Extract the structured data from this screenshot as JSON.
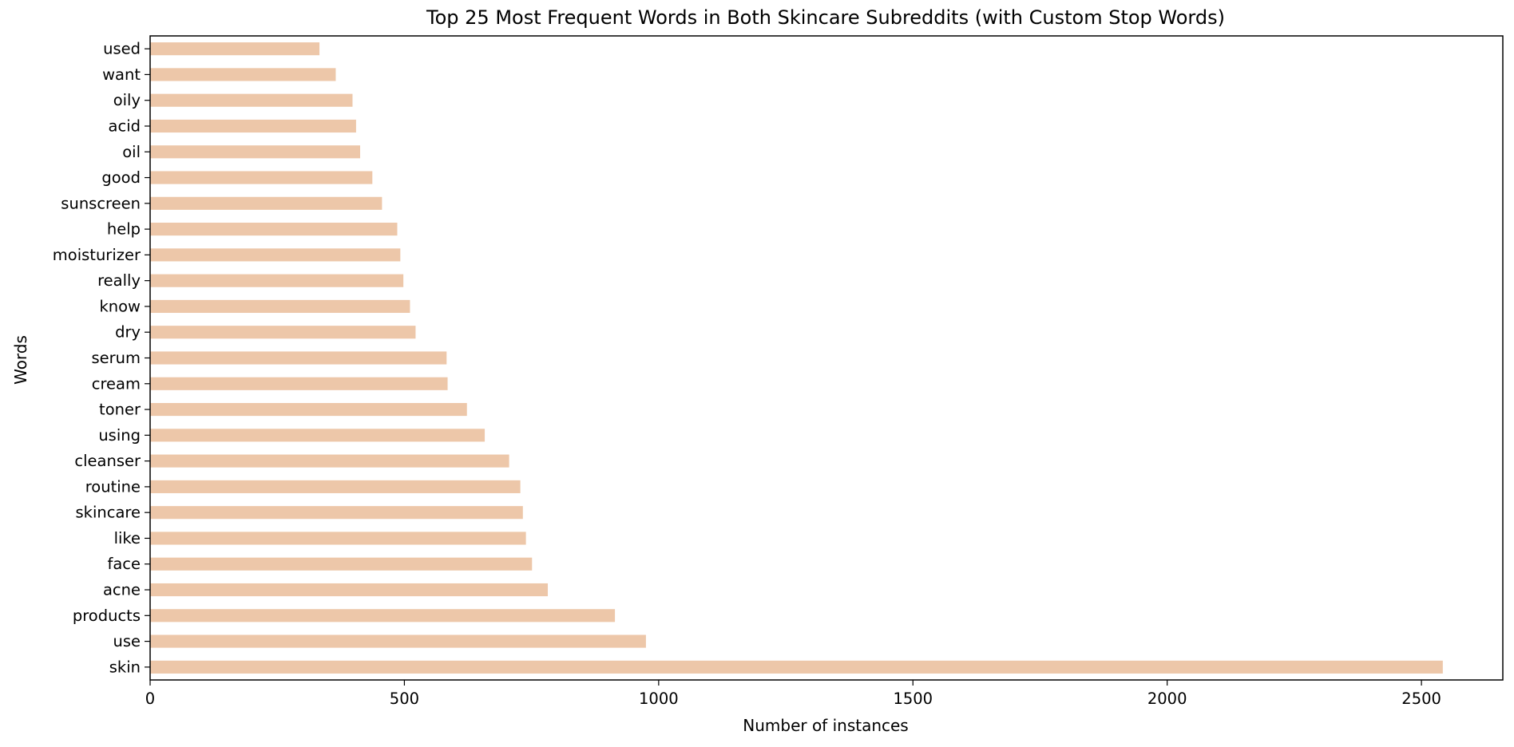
{
  "chart_data": {
    "type": "bar",
    "orientation": "horizontal",
    "title": "Top 25 Most Frequent Words in Both Skincare Subreddits (with Custom Stop Words)",
    "xlabel": "Number of instances",
    "ylabel": "Words",
    "xlim": [
      0,
      2660
    ],
    "xticks": [
      0,
      500,
      1000,
      1500,
      2000,
      2500
    ],
    "bar_color": "#edc7a9",
    "grid": false,
    "categories": [
      "skin",
      "use",
      "products",
      "acne",
      "face",
      "like",
      "skincare",
      "routine",
      "cleanser",
      "using",
      "toner",
      "cream",
      "serum",
      "dry",
      "know",
      "really",
      "moisturizer",
      "help",
      "sunscreen",
      "good",
      "oil",
      "acid",
      "oily",
      "want",
      "used"
    ],
    "values": [
      2542,
      975,
      914,
      782,
      751,
      739,
      733,
      728,
      706,
      658,
      623,
      585,
      583,
      522,
      511,
      498,
      492,
      486,
      456,
      437,
      413,
      405,
      398,
      365,
      333
    ]
  }
}
